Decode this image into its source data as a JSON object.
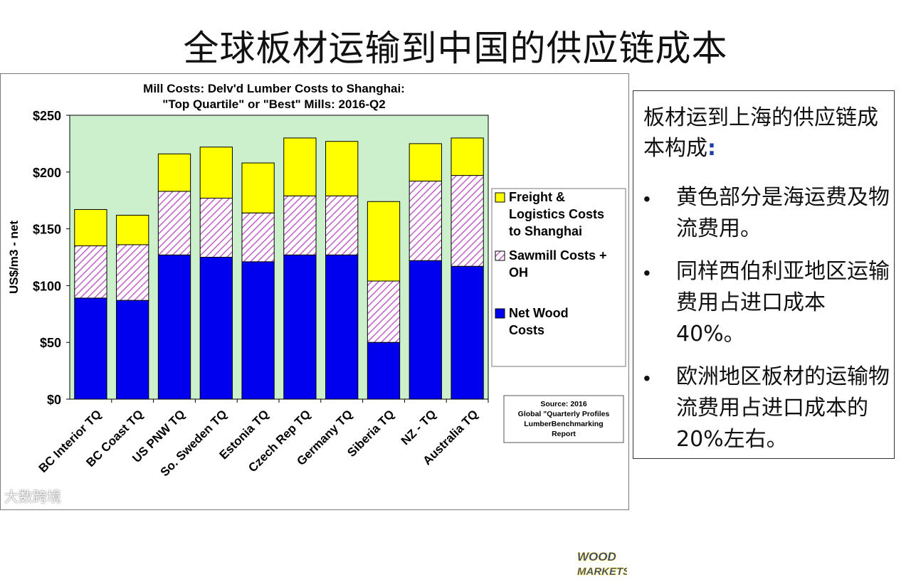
{
  "slide": {
    "title": "全球板材运输到中国的供应链成本"
  },
  "colors": {
    "plot_bg": "#ccf0cc",
    "freight": "#ffff00",
    "sawmill": "#ffffff",
    "sawmill_hatch": "#c060c8",
    "net_wood": "#0000ee",
    "outline": "#000000"
  },
  "chart_data": {
    "type": "bar",
    "stacked": true,
    "title_line1": "Mill Costs: Delv'd Lumber Costs to Shanghai:",
    "title_line2": "\"Top Quartile\" or \"Best\" Mills: 2016-Q2",
    "ylabel": "US$/m3 - net",
    "xlabel": "",
    "ylim": [
      0,
      250
    ],
    "yticks": [
      "$0",
      "$50",
      "$100",
      "$150",
      "$200",
      "$250"
    ],
    "ytick_values": [
      0,
      50,
      100,
      150,
      200,
      250
    ],
    "grid": false,
    "legend_position": "right",
    "categories": [
      "BC Interior TQ",
      "BC Coast TQ",
      "US PNW TQ",
      "So. Sweden TQ",
      "Estonia TQ",
      "Czech Rep TQ",
      "Germany TQ",
      "Siberia TQ",
      "NZ - TQ",
      "Australia TQ"
    ],
    "series": [
      {
        "name": "Net Wood Costs",
        "key": "net_wood",
        "values": [
          89,
          87,
          127,
          125,
          121,
          127,
          127,
          50,
          122,
          117
        ]
      },
      {
        "name": "Sawmill Costs + OH",
        "key": "sawmill",
        "values": [
          46,
          49,
          56,
          52,
          43,
          52,
          52,
          54,
          70,
          80
        ]
      },
      {
        "name": "Freight & Logistics Costs to Shanghai",
        "key": "freight",
        "values": [
          32,
          26,
          33,
          45,
          44,
          51,
          48,
          70,
          33,
          33
        ]
      }
    ],
    "legend": [
      {
        "key": "freight",
        "lines": [
          "Freight &",
          "Logistics Costs",
          "to Shanghai"
        ]
      },
      {
        "key": "sawmill",
        "lines": [
          "Sawmill Costs +",
          "OH"
        ]
      },
      {
        "key": "net_wood",
        "lines": [
          "Net Wood",
          "Costs"
        ]
      }
    ],
    "source_note": [
      "Source:  2016",
      "Global  \"Quarterly  Profiles",
      "LumberBenchmarking",
      "Report"
    ]
  },
  "side_box": {
    "heading": "板材运到上海的供应链成本构成",
    "heading_colon": ":",
    "bullet_symbol": "•",
    "bullets": [
      "黄色部分是海运费及物流费用。",
      "同样西伯利亚地区运输费用占进口成本40%。",
      "欧洲地区板材的运输物流费用占进口成本的20%左右。"
    ]
  },
  "logo": {
    "line1": "WOOD",
    "line2": "MARKETS"
  },
  "watermark": "大数跨境"
}
